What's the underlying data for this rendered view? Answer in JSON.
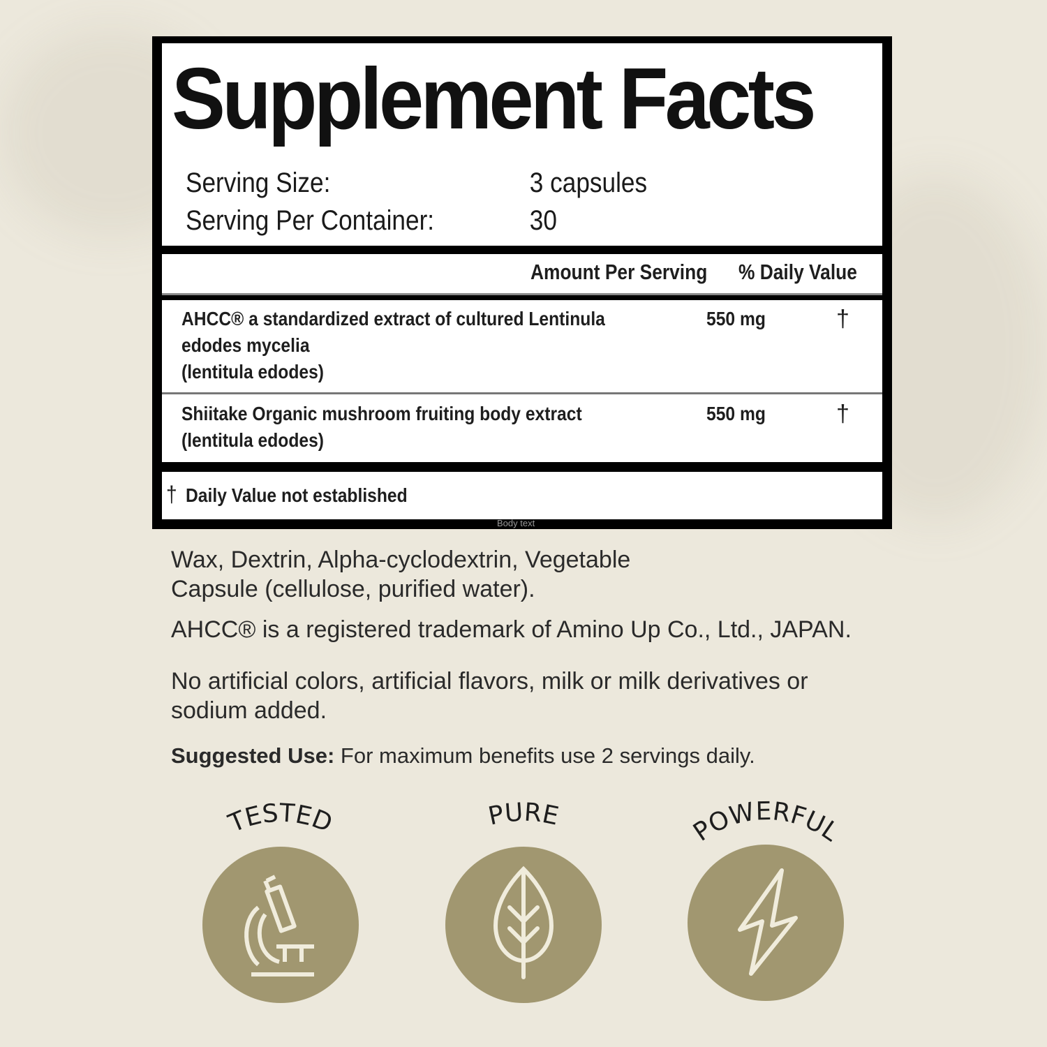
{
  "label": {
    "title": "Supplement Facts",
    "serving_size_label": "Serving Size:",
    "serving_size_value": "3 capsules",
    "servings_per_container_label": "Serving Per Container:",
    "servings_per_container_value": "30",
    "header": {
      "amount": "Amount Per Serving",
      "daily_value": "% Daily Value"
    },
    "ingredients": [
      {
        "name": "AHCC® a standardized extract of cultured Lentinula\nedodes mycelia\n(lentitula edodes)",
        "amount": "550 mg",
        "dv": "†"
      },
      {
        "name": "Shiitake Organic mushroom fruiting body extract\n(lentitula edodes)",
        "amount": "550 mg",
        "dv": "†"
      }
    ],
    "footnote_symbol": "†",
    "footnote": "Daily Value not established",
    "placeholder_text": "Body text"
  },
  "other_ingredients": [
    "Wax, Dextrin, Alpha-cyclodextrin, Vegetable",
    "Capsule (cellulose, purified water)."
  ],
  "trademark": "AHCC® is a registered trademark of Amino Up Co., Ltd., JAPAN.",
  "free_from": [
    "No artificial colors, artificial flavors, milk or milk derivatives or",
    "sodium added."
  ],
  "suggested_use": {
    "label": "Suggested Use:",
    "text": "For maximum benefits use 2 servings daily."
  },
  "badges": [
    {
      "label": "TESTED",
      "icon": "microscope-icon"
    },
    {
      "label": "PURE",
      "icon": "leaf-icon"
    },
    {
      "label": "POWERFUL",
      "icon": "lightning-icon"
    }
  ],
  "colors": {
    "background": "#ece8dc",
    "badge": "#a19770",
    "icon": "#f0ecdc"
  }
}
